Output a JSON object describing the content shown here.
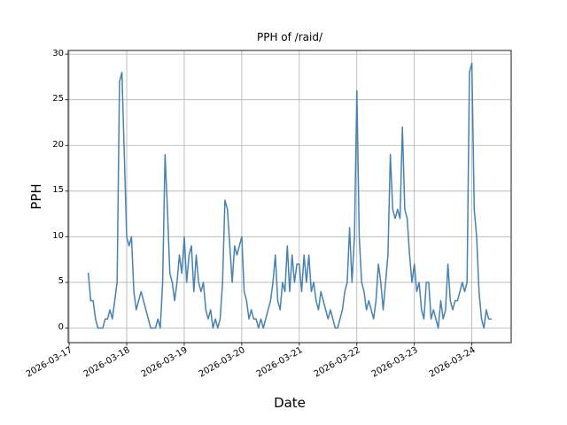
{
  "chart_data": {
    "type": "line",
    "title": "PPH of /raid/",
    "xlabel": "Date",
    "ylabel": "PPH",
    "x_start": "2026-03-17 08:00",
    "x_interval_hours": 1,
    "x_tick_labels": [
      "2026-03-17",
      "2026-03-18",
      "2026-03-19",
      "2026-03-20",
      "2026-03-21",
      "2026-03-22",
      "2026-03-23",
      "2026-03-24"
    ],
    "y_ticks": [
      0,
      5,
      10,
      15,
      20,
      25,
      30
    ],
    "ylim": [
      -1.6,
      30.4
    ],
    "xlim_hours": [
      -8.4,
      176.4
    ],
    "grid": true,
    "legend": "none",
    "line_color": "#4682b4",
    "grid_color": "#b0b0b0",
    "spine_color": "#1a1a1a",
    "background_color": "#ffffff",
    "series_name": "PPH",
    "values": [
      6,
      3,
      3,
      1,
      0,
      0,
      0,
      1,
      1,
      2,
      1,
      3,
      5,
      27,
      28,
      19,
      10,
      9,
      10,
      4,
      2,
      3,
      4,
      3,
      2,
      1,
      0,
      0,
      0,
      1,
      0,
      5,
      19,
      13,
      6,
      5,
      3,
      5,
      8,
      6,
      10,
      5,
      8,
      9,
      4,
      8,
      5,
      4,
      5,
      2,
      1,
      2,
      0,
      1,
      0,
      1,
      5,
      14,
      13,
      9,
      5,
      9,
      8,
      9,
      10,
      4,
      3,
      1,
      2,
      1,
      1,
      0,
      1,
      0,
      1,
      2,
      3,
      5,
      8,
      3,
      2,
      5,
      4,
      9,
      4,
      8,
      5,
      7,
      7,
      4,
      8,
      5,
      8,
      4,
      5,
      3,
      2,
      4,
      3,
      2,
      1,
      2,
      1,
      0,
      0,
      1,
      2,
      4,
      5,
      11,
      5,
      10,
      26,
      10,
      5,
      4,
      2,
      3,
      2,
      1,
      3,
      7,
      5,
      2,
      5,
      8,
      19,
      13,
      12,
      13,
      12,
      22,
      13,
      12,
      8,
      5,
      7,
      4,
      5,
      2,
      1,
      5,
      5,
      1,
      2,
      1,
      0,
      3,
      1,
      2,
      7,
      3,
      2,
      3,
      3,
      4,
      5,
      4,
      5,
      28,
      29,
      13,
      10,
      4,
      1,
      0,
      2,
      1,
      1
    ]
  }
}
